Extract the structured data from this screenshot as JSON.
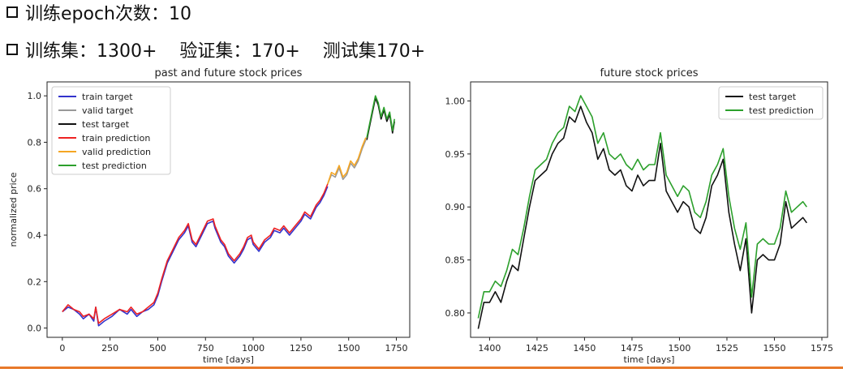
{
  "text": {
    "line1": "训练epoch次数：10",
    "line2": "训练集：1300+    验证集：170+    测试集170+"
  },
  "colors": {
    "accent_rule": "#e8792a"
  },
  "chart_data": [
    {
      "type": "line",
      "title": "past and future stock prices",
      "xlabel": "time [days]",
      "ylabel": "normalized price",
      "xlim": [
        -80,
        1820
      ],
      "ylim": [
        -0.04,
        1.06
      ],
      "xticks": [
        0,
        250,
        500,
        750,
        1000,
        1250,
        1500,
        1750
      ],
      "yticks": [
        0.0,
        0.2,
        0.4,
        0.6,
        0.8,
        1.0
      ],
      "yticklabels": [
        "0.0",
        "0.2",
        "0.4",
        "0.6",
        "0.8",
        "1.0"
      ],
      "grid": false,
      "legend_position": "top-left",
      "series": [
        {
          "name": "train target",
          "color": "#3333cc",
          "x": [
            0,
            30,
            60,
            90,
            110,
            140,
            165,
            175,
            190,
            220,
            260,
            300,
            340,
            360,
            390,
            420,
            450,
            480,
            500,
            520,
            550,
            580,
            610,
            640,
            660,
            680,
            700,
            730,
            760,
            790,
            800,
            830,
            850,
            870,
            900,
            930,
            950,
            970,
            990,
            1000,
            1030,
            1060,
            1090,
            1110,
            1140,
            1160,
            1190,
            1220,
            1250,
            1270,
            1300,
            1330,
            1350,
            1370,
            1390
          ],
          "y": [
            0.07,
            0.09,
            0.08,
            0.06,
            0.04,
            0.06,
            0.03,
            0.09,
            0.01,
            0.03,
            0.05,
            0.08,
            0.06,
            0.08,
            0.05,
            0.07,
            0.08,
            0.1,
            0.14,
            0.2,
            0.28,
            0.33,
            0.38,
            0.41,
            0.44,
            0.37,
            0.35,
            0.4,
            0.45,
            0.46,
            0.43,
            0.37,
            0.35,
            0.31,
            0.28,
            0.31,
            0.34,
            0.38,
            0.39,
            0.36,
            0.33,
            0.37,
            0.39,
            0.42,
            0.41,
            0.43,
            0.4,
            0.43,
            0.46,
            0.49,
            0.47,
            0.52,
            0.54,
            0.57,
            0.61
          ]
        },
        {
          "name": "valid target",
          "color": "#999999",
          "x": [
            1390,
            1410,
            1430,
            1450,
            1470,
            1490,
            1510,
            1530,
            1550,
            1570,
            1590
          ],
          "y": [
            0.62,
            0.66,
            0.65,
            0.69,
            0.64,
            0.66,
            0.71,
            0.69,
            0.72,
            0.77,
            0.81
          ]
        },
        {
          "name": "test target",
          "color": "#111111",
          "x": [
            1595,
            1610,
            1625,
            1640,
            1655,
            1670,
            1685,
            1700,
            1715,
            1730,
            1740
          ],
          "y": [
            0.81,
            0.87,
            0.93,
            0.99,
            0.96,
            0.9,
            0.94,
            0.89,
            0.92,
            0.84,
            0.89
          ]
        },
        {
          "name": "train prediction",
          "color": "#ee2222",
          "x": [
            0,
            30,
            60,
            90,
            110,
            140,
            165,
            175,
            190,
            220,
            260,
            300,
            340,
            360,
            390,
            420,
            450,
            480,
            500,
            520,
            550,
            580,
            610,
            640,
            660,
            680,
            700,
            730,
            760,
            790,
            800,
            830,
            850,
            870,
            900,
            930,
            950,
            970,
            990,
            1000,
            1030,
            1060,
            1090,
            1110,
            1140,
            1160,
            1190,
            1220,
            1250,
            1270,
            1300,
            1330,
            1350,
            1370,
            1390
          ],
          "y": [
            0.07,
            0.1,
            0.08,
            0.07,
            0.05,
            0.06,
            0.04,
            0.09,
            0.02,
            0.04,
            0.06,
            0.08,
            0.07,
            0.09,
            0.06,
            0.07,
            0.09,
            0.11,
            0.15,
            0.21,
            0.29,
            0.34,
            0.39,
            0.42,
            0.45,
            0.38,
            0.36,
            0.41,
            0.46,
            0.47,
            0.44,
            0.38,
            0.36,
            0.32,
            0.29,
            0.32,
            0.35,
            0.39,
            0.4,
            0.37,
            0.34,
            0.38,
            0.4,
            0.43,
            0.42,
            0.44,
            0.41,
            0.44,
            0.47,
            0.5,
            0.48,
            0.53,
            0.55,
            0.58,
            0.62
          ]
        },
        {
          "name": "valid prediction",
          "color": "#f5a623",
          "x": [
            1390,
            1410,
            1430,
            1450,
            1470,
            1490,
            1510,
            1530,
            1550,
            1570,
            1590
          ],
          "y": [
            0.62,
            0.67,
            0.66,
            0.7,
            0.65,
            0.67,
            0.72,
            0.7,
            0.73,
            0.78,
            0.82
          ]
        },
        {
          "name": "test prediction",
          "color": "#2ca02c",
          "x": [
            1595,
            1610,
            1625,
            1640,
            1655,
            1670,
            1685,
            1700,
            1715,
            1730,
            1740
          ],
          "y": [
            0.82,
            0.88,
            0.94,
            1.0,
            0.97,
            0.91,
            0.95,
            0.9,
            0.93,
            0.85,
            0.9
          ]
        }
      ]
    },
    {
      "type": "line",
      "title": "future stock prices",
      "xlabel": "time [days]",
      "ylabel": "",
      "xlim": [
        1390,
        1578
      ],
      "ylim": [
        0.777,
        1.018
      ],
      "xticks": [
        1400,
        1425,
        1450,
        1475,
        1500,
        1525,
        1550,
        1575
      ],
      "yticks": [
        0.8,
        0.85,
        0.9,
        0.95,
        1.0
      ],
      "yticklabels": [
        "0.80",
        "0.85",
        "0.90",
        "0.95",
        "1.00"
      ],
      "grid": false,
      "legend_position": "top-right",
      "series": [
        {
          "name": "test target",
          "color": "#111111",
          "x": [
            1394,
            1397,
            1400,
            1403,
            1406,
            1409,
            1412,
            1415,
            1418,
            1421,
            1424,
            1427,
            1430,
            1433,
            1436,
            1439,
            1442,
            1445,
            1448,
            1451,
            1454,
            1457,
            1460,
            1463,
            1466,
            1469,
            1472,
            1475,
            1478,
            1481,
            1484,
            1487,
            1490,
            1493,
            1496,
            1499,
            1502,
            1505,
            1508,
            1511,
            1514,
            1517,
            1520,
            1523,
            1526,
            1529,
            1532,
            1535,
            1538,
            1541,
            1544,
            1547,
            1550,
            1553,
            1556,
            1559,
            1562,
            1565,
            1567
          ],
          "y": [
            0.785,
            0.81,
            0.81,
            0.82,
            0.81,
            0.83,
            0.845,
            0.84,
            0.87,
            0.9,
            0.925,
            0.93,
            0.935,
            0.95,
            0.96,
            0.965,
            0.985,
            0.98,
            0.995,
            0.98,
            0.97,
            0.945,
            0.955,
            0.935,
            0.93,
            0.935,
            0.92,
            0.915,
            0.93,
            0.92,
            0.925,
            0.925,
            0.96,
            0.915,
            0.905,
            0.895,
            0.905,
            0.9,
            0.88,
            0.875,
            0.89,
            0.92,
            0.93,
            0.945,
            0.895,
            0.865,
            0.84,
            0.87,
            0.8,
            0.85,
            0.855,
            0.85,
            0.85,
            0.865,
            0.905,
            0.88,
            0.885,
            0.89,
            0.885
          ]
        },
        {
          "name": "test prediction",
          "color": "#2ca02c",
          "x": [
            1394,
            1397,
            1400,
            1403,
            1406,
            1409,
            1412,
            1415,
            1418,
            1421,
            1424,
            1427,
            1430,
            1433,
            1436,
            1439,
            1442,
            1445,
            1448,
            1451,
            1454,
            1457,
            1460,
            1463,
            1466,
            1469,
            1472,
            1475,
            1478,
            1481,
            1484,
            1487,
            1490,
            1493,
            1496,
            1499,
            1502,
            1505,
            1508,
            1511,
            1514,
            1517,
            1520,
            1523,
            1526,
            1529,
            1532,
            1535,
            1538,
            1541,
            1544,
            1547,
            1550,
            1553,
            1556,
            1559,
            1562,
            1565,
            1567
          ],
          "y": [
            0.795,
            0.82,
            0.82,
            0.83,
            0.825,
            0.84,
            0.86,
            0.855,
            0.88,
            0.91,
            0.935,
            0.94,
            0.945,
            0.96,
            0.97,
            0.975,
            0.995,
            0.99,
            1.005,
            0.995,
            0.985,
            0.96,
            0.97,
            0.95,
            0.945,
            0.95,
            0.94,
            0.935,
            0.945,
            0.935,
            0.94,
            0.94,
            0.97,
            0.93,
            0.92,
            0.91,
            0.92,
            0.915,
            0.895,
            0.89,
            0.905,
            0.93,
            0.94,
            0.955,
            0.91,
            0.88,
            0.86,
            0.885,
            0.815,
            0.865,
            0.87,
            0.865,
            0.865,
            0.88,
            0.915,
            0.895,
            0.9,
            0.905,
            0.9
          ]
        }
      ]
    }
  ]
}
